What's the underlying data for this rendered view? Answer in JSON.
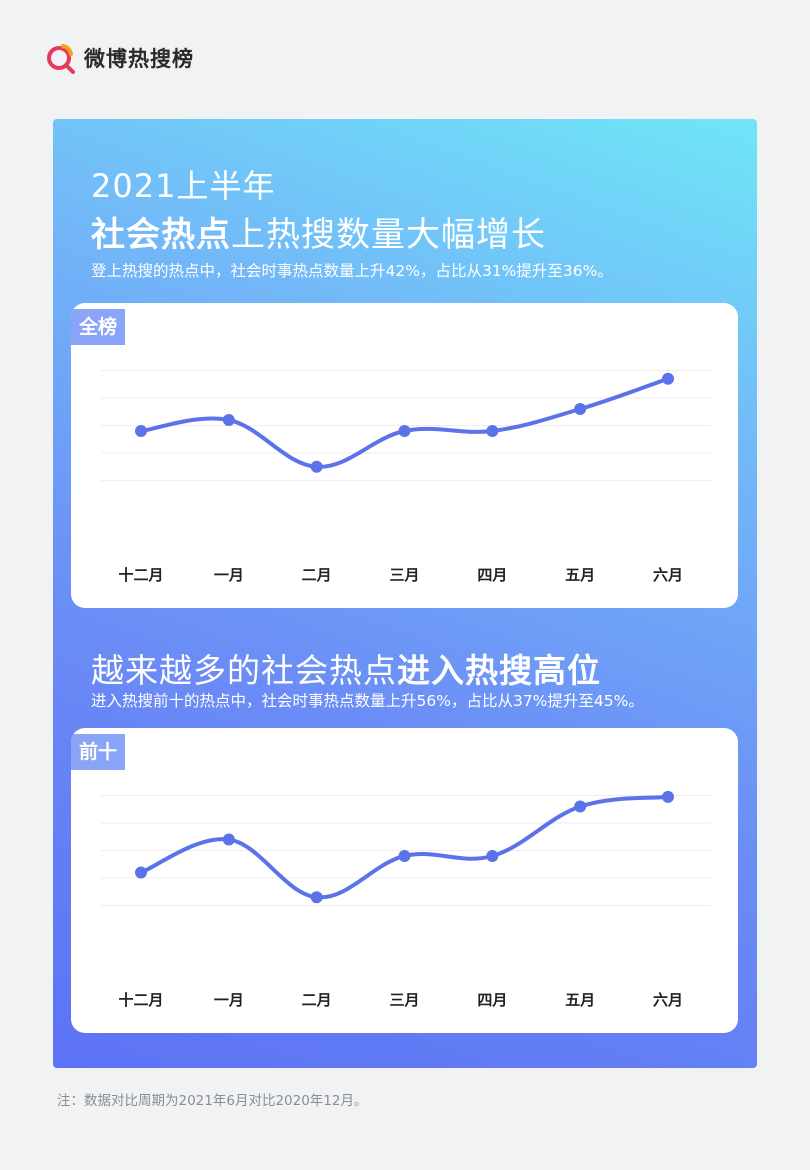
{
  "brand": {
    "name": "微博热搜榜",
    "logo_icon": "search-magnifier-logo-icon"
  },
  "header": {
    "year_title": "2021上半年",
    "title_bold": "社会热点",
    "title_rest": "上热搜数量大幅增长",
    "subtitle": "登上热搜的热点中，社会时事热点数量上升42%，占比从31%提升至36%。"
  },
  "section2": {
    "title_rest": "越来越多的社会热点",
    "title_bold": "进入热搜高位",
    "subtitle": "进入热搜前十的热点中，社会时事热点数量上升56%，占比从37%提升至45%。"
  },
  "colors": {
    "line": "#5b73e8",
    "tag": "#8aa4f7",
    "gradient_top": "#6fe6f7",
    "gradient_bottom": "#5c72f4"
  },
  "footnote": "注：数据对比周期为2021年6月对比2020年12月。",
  "chart_data": [
    {
      "type": "line",
      "title": "全榜",
      "categories": [
        "十二月",
        "一月",
        "二月",
        "三月",
        "四月",
        "五月",
        "六月"
      ],
      "series": [
        {
          "values": [
            2.8,
            3.2,
            1.5,
            2.8,
            2.8,
            3.6,
            4.7
          ]
        }
      ],
      "ylim": [
        0,
        6
      ],
      "grid": true
    },
    {
      "type": "line",
      "title": "前十",
      "categories": [
        "十二月",
        "一月",
        "二月",
        "三月",
        "四月",
        "五月",
        "六月"
      ],
      "series": [
        {
          "values": [
            2.2,
            3.4,
            1.3,
            2.8,
            2.8,
            4.6,
            4.95
          ]
        }
      ],
      "ylim": [
        0,
        6
      ],
      "grid": true
    }
  ]
}
